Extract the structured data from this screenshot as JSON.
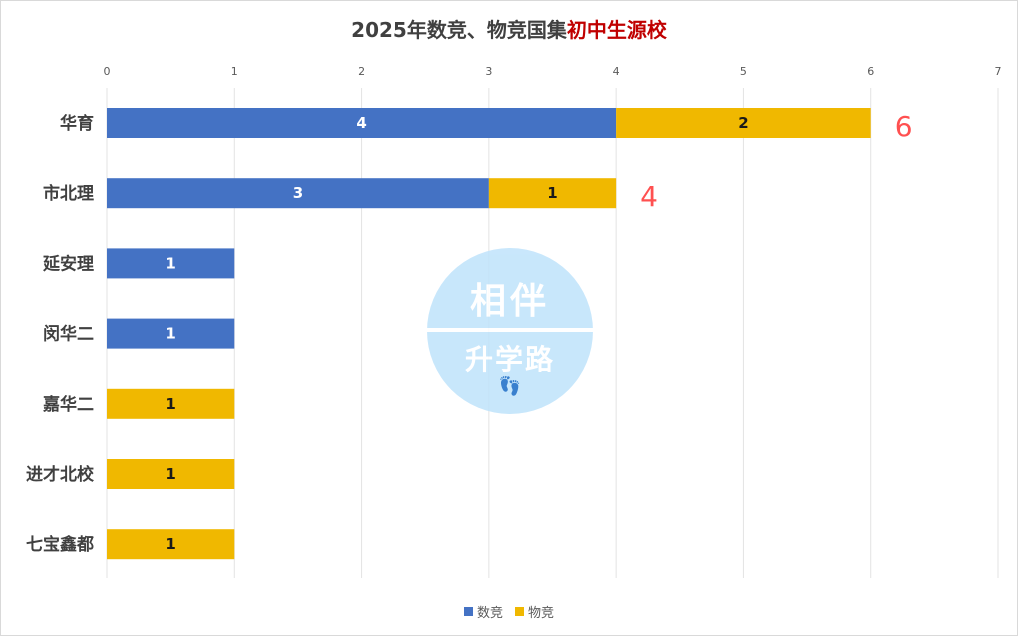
{
  "title": {
    "main": "2025年数竞、物竞国集",
    "highlight": "初中生源校"
  },
  "watermark": {
    "top": "相伴",
    "bottom": "升学路",
    "icon": "footprints-icon"
  },
  "colors": {
    "math": "#4472c4",
    "physics": "#f0b800",
    "total": "#ff5050",
    "title_highlight": "#c00000"
  },
  "chart_data": {
    "type": "bar",
    "orientation": "horizontal",
    "stacked": true,
    "categories": [
      "华育",
      "市北理",
      "延安理",
      "闵华二",
      "嘉华二",
      "进才北校",
      "七宝鑫都"
    ],
    "series": [
      {
        "name": "数竞",
        "values": [
          4,
          3,
          1,
          1,
          0,
          0,
          0
        ]
      },
      {
        "name": "物竞",
        "values": [
          2,
          1,
          0,
          0,
          1,
          1,
          1
        ]
      }
    ],
    "totals_shown": [
      6,
      4,
      null,
      null,
      null,
      null,
      null
    ],
    "xlim": [
      0,
      7
    ],
    "xticks": [
      "0",
      "1",
      "2",
      "3",
      "4",
      "5",
      "6",
      "7"
    ],
    "grid": true,
    "legend_position": "bottom"
  }
}
